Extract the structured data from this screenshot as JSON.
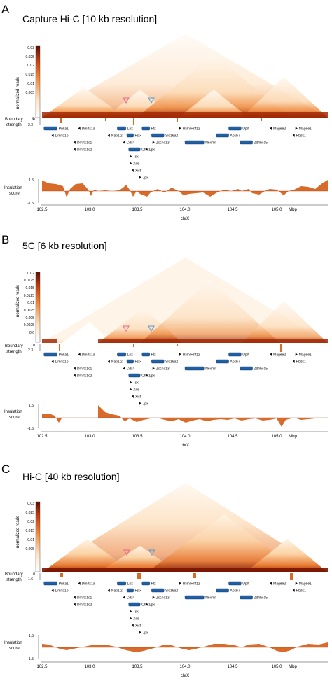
{
  "panels": [
    {
      "letter": "A",
      "title": "Capture Hi-C [10 kb resolution]",
      "colorbar_label": "normalized reads",
      "colorbar_ticks": [
        "0.03",
        "0.025",
        "0.02",
        "0.015",
        "0.01",
        "0.005",
        "0"
      ],
      "boundary_label_1": "Boundary",
      "boundary_label_2": "strength",
      "boundary_max": "2.3",
      "insulation_label_1": "Insulation",
      "insulation_label_2": "score",
      "insulation_ticks": [
        "1.5",
        "-1.5"
      ],
      "xaxis_ticks": [
        "102.5",
        "103.0",
        "103.5",
        "104.0",
        "104.5",
        "105.0"
      ],
      "xaxis_unit": "Mbp",
      "xaxis_label": "chrX"
    },
    {
      "letter": "B",
      "title": "5C [6 kb resolution]",
      "colorbar_label": "normalized reads",
      "colorbar_ticks": [
        "0.02",
        "0.0175",
        "0.015",
        "0.0125",
        "0.01",
        "0.0075",
        "0.005",
        "0.0025",
        "0.0"
      ],
      "boundary_label_1": "Boundary",
      "boundary_label_2": "strength",
      "boundary_max": "2.3",
      "insulation_label_1": "Insulation",
      "insulation_label_2": "score",
      "insulation_ticks": [
        "1.5",
        "-1.5"
      ],
      "xaxis_ticks": [
        "102.5",
        "103.0",
        "103.5",
        "104.0",
        "104.5",
        "105.0"
      ],
      "xaxis_unit": "Mbp",
      "xaxis_label": "chrX"
    },
    {
      "letter": "C",
      "title": "Hi-C [40 kb resolution]",
      "colorbar_label": "normalized reads",
      "colorbar_ticks": [
        "0.03",
        "0.025",
        "0.02",
        "0.015",
        "0.01",
        "0.005"
      ],
      "boundary_label_1": "Boundary",
      "boundary_label_2": "strength",
      "boundary_max": "1.6",
      "insulation_label_1": "Insulation",
      "insulation_label_2": "score",
      "insulation_ticks": [
        "1.5",
        "-1.5"
      ],
      "xaxis_ticks": [
        "102.5",
        "103.0",
        "103.5",
        "104.0",
        "104.5",
        "105.0"
      ],
      "xaxis_unit": "Mbp",
      "xaxis_label": "chrX"
    }
  ],
  "genes": [
    {
      "name": "Pnka1",
      "start": 102.52,
      "end": 102.66,
      "row": 0,
      "strand": "+"
    },
    {
      "name": "Dmrtc1a",
      "start": 102.88,
      "end": 102.89,
      "row": 0,
      "strand": "-"
    },
    {
      "name": "Lnx",
      "start": 103.29,
      "end": 103.38,
      "row": 0,
      "strand": "+"
    },
    {
      "name": "Ftx",
      "start": 103.55,
      "end": 103.63,
      "row": 0,
      "strand": "+"
    },
    {
      "name": "Rlim/Rnf12",
      "start": 103.94,
      "end": 103.97,
      "row": 0,
      "strand": "+"
    },
    {
      "name": "Uprt",
      "start": 104.46,
      "end": 104.59,
      "row": 0,
      "strand": "+"
    },
    {
      "name": "Magee2",
      "start": 104.89,
      "end": 104.9,
      "row": 0,
      "strand": "-"
    },
    {
      "name": "Magee1",
      "start": 105.16,
      "end": 105.17,
      "row": 0,
      "strand": "+"
    },
    {
      "name": "Dmrtc1b",
      "start": 102.6,
      "end": 102.61,
      "row": 1,
      "strand": "-"
    },
    {
      "name": "Nap1l2",
      "start": 103.19,
      "end": 103.2,
      "row": 1,
      "strand": "-"
    },
    {
      "name": "Fsix",
      "start": 103.39,
      "end": 103.46,
      "row": 1,
      "strand": "+"
    },
    {
      "name": "Slc16a2",
      "start": 103.65,
      "end": 103.78,
      "row": 1,
      "strand": "+"
    },
    {
      "name": "Abcb7",
      "start": 104.33,
      "end": 104.46,
      "row": 1,
      "strand": "+"
    },
    {
      "name": "Pbdc1",
      "start": 105.13,
      "end": 105.14,
      "row": 1,
      "strand": "-"
    },
    {
      "name": "Dmrtc1c1",
      "start": 102.83,
      "end": 102.84,
      "row": 2,
      "strand": "-"
    },
    {
      "name": "Cdx4",
      "start": 103.35,
      "end": 103.36,
      "row": 2,
      "strand": "-"
    },
    {
      "name": "Zcchc13",
      "start": 103.66,
      "end": 103.67,
      "row": 2,
      "strand": "+"
    },
    {
      "name": "Nexmif",
      "start": 104.0,
      "end": 104.2,
      "row": 2,
      "strand": "+"
    },
    {
      "name": "Zdhhc15",
      "start": 104.58,
      "end": 104.71,
      "row": 2,
      "strand": "+"
    },
    {
      "name": "Dmrtc1c2",
      "start": 102.83,
      "end": 102.84,
      "row": 3,
      "strand": "-"
    },
    {
      "name": "Chic1",
      "start": 103.41,
      "end": 103.53,
      "row": 3,
      "strand": "+"
    },
    {
      "name": "Jpx",
      "start": 103.59,
      "end": 103.62,
      "row": 3,
      "strand": "+"
    },
    {
      "name": "Tsx",
      "start": 103.42,
      "end": 103.43,
      "row": 4,
      "strand": "+"
    },
    {
      "name": "Xite",
      "start": 103.42,
      "end": 103.43,
      "row": 5,
      "strand": "+"
    },
    {
      "name": "Xist",
      "start": 103.44,
      "end": 103.46,
      "row": 6,
      "strand": "-"
    },
    {
      "name": "Jpx",
      "start": 103.52,
      "end": 103.56,
      "row": 7,
      "strand": "+"
    }
  ],
  "colors": {
    "heat_high": "#8b1a00",
    "heat_mid": "#e8742a",
    "heat_low": "#fde6cc",
    "gene_fill": "#1f5fa6",
    "insulation": "#d86a2a",
    "marker_pink": "#e46a8a",
    "marker_blue": "#5b9bd5"
  }
}
